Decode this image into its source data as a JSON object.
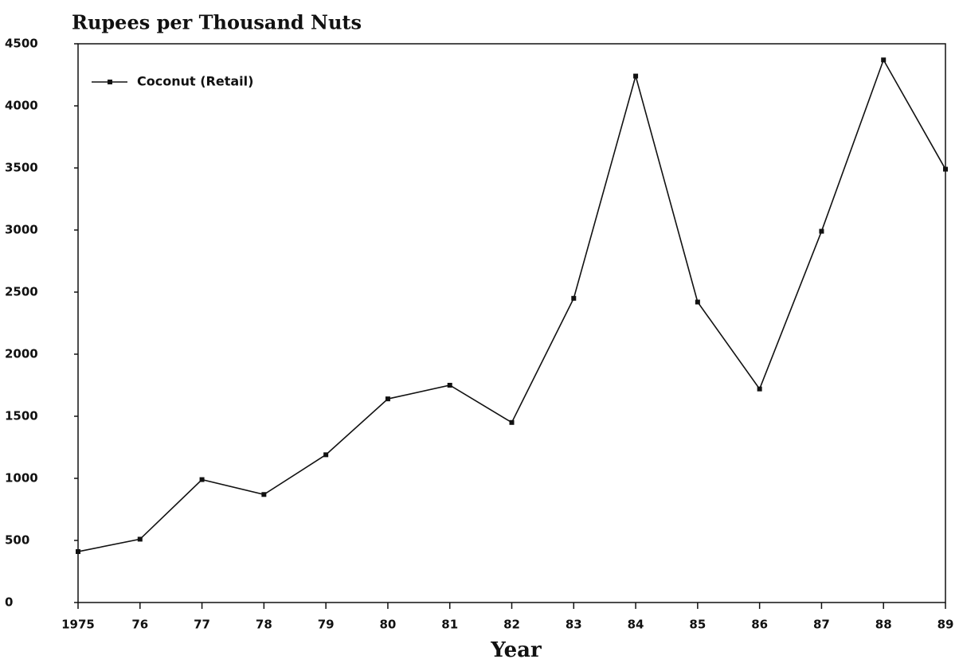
{
  "chart_data": {
    "type": "line",
    "title": "Rupees per Thousand Nuts",
    "x_label": "Year",
    "categories": [
      "1975",
      "76",
      "77",
      "78",
      "79",
      "80",
      "81",
      "82",
      "83",
      "84",
      "85",
      "86",
      "87",
      "88",
      "89"
    ],
    "series": [
      {
        "name": "Coconut (Retail)",
        "color": "#111111",
        "values": [
          410,
          510,
          990,
          870,
          1190,
          1640,
          1750,
          1450,
          2450,
          4240,
          2420,
          1720,
          2990,
          4370,
          3490
        ]
      }
    ],
    "ylim": [
      0,
      4500
    ],
    "yticks": [
      0,
      500,
      1000,
      1500,
      2000,
      2500,
      3000,
      3500,
      4000,
      4500
    ],
    "legend": "upper left"
  }
}
